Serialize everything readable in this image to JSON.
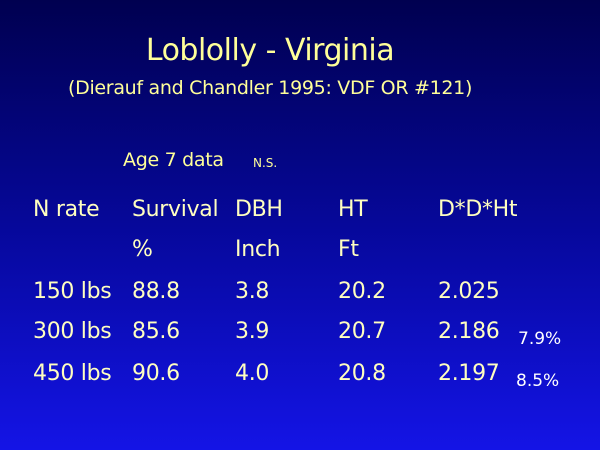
{
  "title": "Loblolly - Virginia",
  "subtitle": "(Dierauf and Chandler 1995: VDF OR #121)",
  "note": "Age 7 data",
  "significance": "N.S.",
  "table": {
    "headers": [
      "N rate",
      "Survival",
      "DBH",
      "HT",
      "D*D*Ht"
    ],
    "units": {
      "survival": "%",
      "dbh": "Inch",
      "ht": "Ft"
    },
    "rows": [
      {
        "cells": [
          "150 lbs",
          "88.8",
          "3.8",
          "20.2",
          "2.025"
        ]
      },
      {
        "cells": [
          "300 lbs",
          "85.6",
          "3.9",
          "20.7",
          "2.186"
        ],
        "change": "7.9%"
      },
      {
        "cells": [
          "450 lbs",
          "90.6",
          "4.0",
          "20.8",
          "2.197"
        ],
        "change": "8.5%"
      }
    ]
  }
}
